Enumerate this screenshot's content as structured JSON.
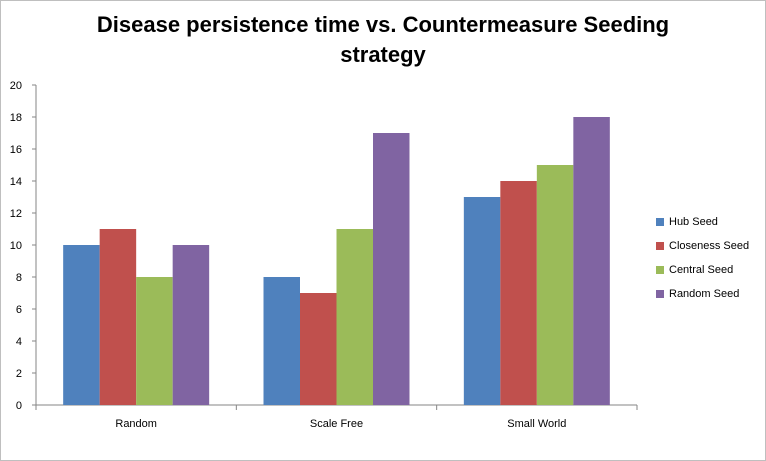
{
  "chart_data": {
    "type": "bar",
    "title_lines": [
      "Disease persistence time vs. Countermeasure Seeding",
      "strategy"
    ],
    "categories": [
      "Random",
      "Scale Free",
      "Small World"
    ],
    "series": [
      {
        "name": "Hub Seed",
        "color": "#4f81bd",
        "values": [
          10,
          8,
          13
        ]
      },
      {
        "name": "Closeness Seed",
        "color": "#c0504d",
        "values": [
          11,
          7,
          14
        ]
      },
      {
        "name": "Central Seed",
        "color": "#9bbb59",
        "values": [
          8,
          11,
          15
        ]
      },
      {
        "name": "Random Seed",
        "color": "#8064a2",
        "values": [
          10,
          17,
          18
        ]
      }
    ],
    "ylim": [
      0,
      20
    ],
    "yticks": [
      "0",
      "2",
      "4",
      "6",
      "8",
      "10",
      "12",
      "14",
      "16",
      "18",
      "20"
    ],
    "grid": false,
    "legend_position": "right"
  }
}
